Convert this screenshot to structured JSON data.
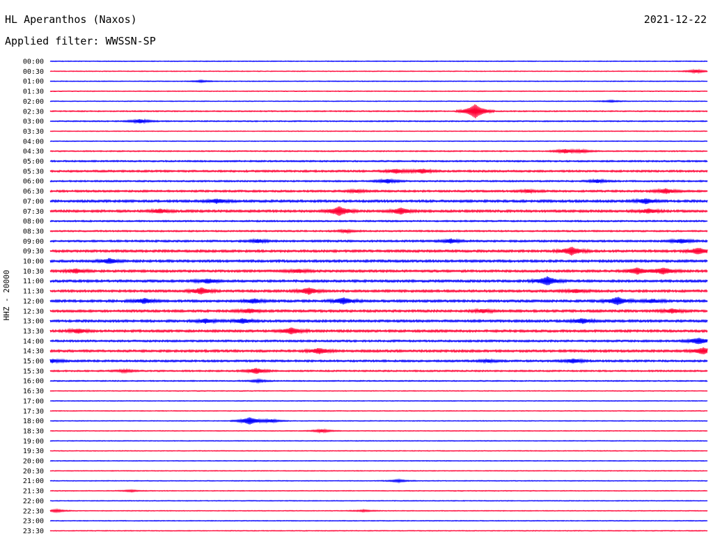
{
  "header": {
    "station": "HL Aperanthos (Naxos)",
    "date": "2021-12-22",
    "filter": "Applied filter: WWSSN-SP"
  },
  "component_label": "HHZ - 20000",
  "colors": {
    "even_trace": "#0000ff",
    "odd_trace": "#ff0033"
  },
  "chart_data": {
    "type": "line",
    "title": "HL Aperanthos (Naxos)",
    "xlabel": "",
    "ylabel": "HHZ - 20000",
    "row_labels": [
      "00:00",
      "00:30",
      "01:00",
      "01:30",
      "02:00",
      "02:30",
      "03:00",
      "03:30",
      "04:00",
      "04:30",
      "05:00",
      "05:30",
      "06:00",
      "06:30",
      "07:00",
      "07:30",
      "08:00",
      "08:30",
      "09:00",
      "09:30",
      "10:00",
      "10:30",
      "11:00",
      "11:30",
      "12:00",
      "12:30",
      "13:00",
      "13:30",
      "14:00",
      "14:30",
      "15:00",
      "15:30",
      "16:00",
      "16:30",
      "17:00",
      "17:30",
      "18:00",
      "18:30",
      "19:00",
      "19:30",
      "20:00",
      "20:30",
      "21:00",
      "21:30",
      "22:00",
      "22:30",
      "23:00",
      "23:30"
    ],
    "trace_minutes": 30,
    "grid": false,
    "legend": "none",
    "trace_colors": [
      "#0000ff",
      "#ff0033"
    ],
    "noise": [
      1,
      1,
      1,
      1,
      1,
      1.5,
      1.5,
      1,
      1,
      1.5,
      2,
      2.5,
      2,
      2.5,
      3,
      3,
      2,
      2,
      2.5,
      3,
      3,
      3,
      3,
      3,
      3,
      3,
      3,
      3,
      2.5,
      3,
      2.5,
      2,
      1.5,
      1,
      1,
      1,
      1,
      1,
      1,
      1,
      1,
      1,
      1,
      1,
      1,
      1,
      1,
      1
    ],
    "events": [
      {
        "trace": "00:30",
        "minute": 29.5,
        "amplitude": 4
      },
      {
        "trace": "01:00",
        "minute": 6.9,
        "amplitude": 2
      },
      {
        "trace": "02:00",
        "minute": 25.6,
        "amplitude": 2
      },
      {
        "trace": "02:30",
        "minute": 19.4,
        "amplitude": 20
      },
      {
        "trace": "03:00",
        "minute": 4.1,
        "amplitude": 5
      },
      {
        "trace": "04:30",
        "minute": 23.5,
        "amplitude": 5
      },
      {
        "trace": "04:30",
        "minute": 24.3,
        "amplitude": 3
      },
      {
        "trace": "05:30",
        "minute": 17.0,
        "amplitude": 5
      },
      {
        "trace": "05:30",
        "minute": 15.8,
        "amplitude": 5
      },
      {
        "trace": "06:00",
        "minute": 15.4,
        "amplitude": 5
      },
      {
        "trace": "06:00",
        "minute": 25.0,
        "amplitude": 4
      },
      {
        "trace": "06:30",
        "minute": 28.1,
        "amplitude": 6
      },
      {
        "trace": "06:30",
        "minute": 21.8,
        "amplitude": 3
      },
      {
        "trace": "06:30",
        "minute": 14.0,
        "amplitude": 3
      },
      {
        "trace": "07:00",
        "minute": 7.6,
        "amplitude": 5
      },
      {
        "trace": "07:00",
        "minute": 27.2,
        "amplitude": 6
      },
      {
        "trace": "07:30",
        "minute": 5.0,
        "amplitude": 5
      },
      {
        "trace": "07:30",
        "minute": 13.2,
        "amplitude": 12
      },
      {
        "trace": "07:30",
        "minute": 16.0,
        "amplitude": 8
      },
      {
        "trace": "07:30",
        "minute": 27.3,
        "amplitude": 5
      },
      {
        "trace": "08:30",
        "minute": 13.5,
        "amplitude": 3
      },
      {
        "trace": "09:00",
        "minute": 9.5,
        "amplitude": 4
      },
      {
        "trace": "09:00",
        "minute": 18.3,
        "amplitude": 5
      },
      {
        "trace": "09:00",
        "minute": 28.8,
        "amplitude": 5
      },
      {
        "trace": "09:30",
        "minute": 23.8,
        "amplitude": 10
      },
      {
        "trace": "09:30",
        "minute": 29.6,
        "amplitude": 8
      },
      {
        "trace": "10:00",
        "minute": 2.7,
        "amplitude": 6
      },
      {
        "trace": "10:30",
        "minute": 1.2,
        "amplitude": 5
      },
      {
        "trace": "10:30",
        "minute": 11.3,
        "amplitude": 4
      },
      {
        "trace": "10:30",
        "minute": 26.8,
        "amplitude": 8
      },
      {
        "trace": "10:30",
        "minute": 28.0,
        "amplitude": 8
      },
      {
        "trace": "11:00",
        "minute": 22.7,
        "amplitude": 11
      },
      {
        "trace": "11:00",
        "minute": 7.2,
        "amplitude": 5
      },
      {
        "trace": "11:30",
        "minute": 6.9,
        "amplitude": 8
      },
      {
        "trace": "11:30",
        "minute": 11.8,
        "amplitude": 8
      },
      {
        "trace": "11:30",
        "minute": 24.0,
        "amplitude": 4
      },
      {
        "trace": "12:00",
        "minute": 4.3,
        "amplitude": 6
      },
      {
        "trace": "12:00",
        "minute": 9.3,
        "amplitude": 5
      },
      {
        "trace": "12:00",
        "minute": 13.4,
        "amplitude": 8
      },
      {
        "trace": "12:00",
        "minute": 25.9,
        "amplitude": 10
      },
      {
        "trace": "12:00",
        "minute": 27.5,
        "amplitude": 4
      },
      {
        "trace": "12:30",
        "minute": 9.1,
        "amplitude": 5
      },
      {
        "trace": "12:30",
        "minute": 19.8,
        "amplitude": 4
      },
      {
        "trace": "12:30",
        "minute": 28.4,
        "amplitude": 5
      },
      {
        "trace": "13:00",
        "minute": 7.1,
        "amplitude": 5
      },
      {
        "trace": "13:00",
        "minute": 8.8,
        "amplitude": 5
      },
      {
        "trace": "13:00",
        "minute": 24.3,
        "amplitude": 6
      },
      {
        "trace": "13:30",
        "minute": 1.3,
        "amplitude": 5
      },
      {
        "trace": "13:30",
        "minute": 11.0,
        "amplitude": 8
      },
      {
        "trace": "14:00",
        "minute": 29.6,
        "amplitude": 8
      },
      {
        "trace": "14:30",
        "minute": 12.3,
        "amplitude": 7
      },
      {
        "trace": "14:30",
        "minute": 29.8,
        "amplitude": 8
      },
      {
        "trace": "15:00",
        "minute": 0.1,
        "amplitude": 4
      },
      {
        "trace": "15:00",
        "minute": 23.9,
        "amplitude": 5
      },
      {
        "trace": "15:00",
        "minute": 20.0,
        "amplitude": 3
      },
      {
        "trace": "15:30",
        "minute": 9.4,
        "amplitude": 7
      },
      {
        "trace": "15:30",
        "minute": 3.4,
        "amplitude": 3
      },
      {
        "trace": "16:00",
        "minute": 9.5,
        "amplitude": 3
      },
      {
        "trace": "18:00",
        "minute": 9.1,
        "amplitude": 10
      },
      {
        "trace": "18:00",
        "minute": 10.1,
        "amplitude": 4
      },
      {
        "trace": "18:30",
        "minute": 12.4,
        "amplitude": 4
      },
      {
        "trace": "21:00",
        "minute": 15.9,
        "amplitude": 3
      },
      {
        "trace": "21:30",
        "minute": 3.7,
        "amplitude": 2
      },
      {
        "trace": "22:30",
        "minute": 0.3,
        "amplitude": 3
      },
      {
        "trace": "22:30",
        "minute": 14.3,
        "amplitude": 2
      }
    ]
  }
}
